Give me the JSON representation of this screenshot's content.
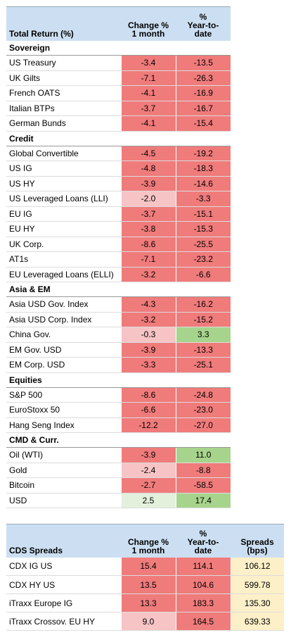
{
  "returns": {
    "header": {
      "title": "Total Return (%)",
      "col1": [
        "Change %",
        "1 month"
      ],
      "col2": [
        "%",
        "Year-to-",
        "date"
      ]
    },
    "sections": [
      {
        "name": "Sovereign",
        "rows": [
          {
            "label": "US Treasury",
            "m1": "-3.4",
            "ytd": "-13.5",
            "c1": "neg",
            "c2": "neg"
          },
          {
            "label": "UK Gilts",
            "m1": "-7.1",
            "ytd": "-26.3",
            "c1": "neg",
            "c2": "neg"
          },
          {
            "label": "French OATS",
            "m1": "-4.1",
            "ytd": "-16.9",
            "c1": "neg",
            "c2": "neg"
          },
          {
            "label": "Italian BTPs",
            "m1": "-3.7",
            "ytd": "-16.7",
            "c1": "neg",
            "c2": "neg"
          },
          {
            "label": "German Bunds",
            "m1": "-4.1",
            "ytd": "-15.4",
            "c1": "neg",
            "c2": "neg"
          }
        ]
      },
      {
        "name": "Credit",
        "rows": [
          {
            "label": "Global Convertible",
            "m1": "-4.5",
            "ytd": "-19.2",
            "c1": "neg",
            "c2": "neg"
          },
          {
            "label": "US IG",
            "m1": "-4.8",
            "ytd": "-18.3",
            "c1": "neg",
            "c2": "neg"
          },
          {
            "label": "US HY",
            "m1": "-3.9",
            "ytd": "-14.6",
            "c1": "neg",
            "c2": "neg"
          },
          {
            "label": "US Leveraged Loans (LLI)",
            "m1": "-2.0",
            "ytd": "-3.3",
            "c1": "negl",
            "c2": "neg"
          },
          {
            "label": "EU IG",
            "m1": "-3.7",
            "ytd": "-15.1",
            "c1": "neg",
            "c2": "neg"
          },
          {
            "label": "EU HY",
            "m1": "-3.8",
            "ytd": "-15.3",
            "c1": "neg",
            "c2": "neg"
          },
          {
            "label": "UK Corp.",
            "m1": "-8.6",
            "ytd": "-25.5",
            "c1": "neg",
            "c2": "neg"
          },
          {
            "label": "AT1s",
            "m1": "-7.1",
            "ytd": "-23.2",
            "c1": "neg",
            "c2": "neg"
          },
          {
            "label": "EU Leveraged Loans (ELLI)",
            "m1": "-3.2",
            "ytd": "-6.6",
            "c1": "neg",
            "c2": "neg"
          }
        ]
      },
      {
        "name": "Asia & EM",
        "rows": [
          {
            "label": "Asia USD Gov. Index",
            "m1": "-4.3",
            "ytd": "-16.2",
            "c1": "neg",
            "c2": "neg"
          },
          {
            "label": "Asia USD Corp. Index",
            "m1": "-3.2",
            "ytd": "-15.2",
            "c1": "neg",
            "c2": "neg"
          },
          {
            "label": "China Gov.",
            "m1": "-0.3",
            "ytd": "3.3",
            "c1": "negl",
            "c2": "pos"
          },
          {
            "label": "EM Gov. USD",
            "m1": "-3.9",
            "ytd": "-13.3",
            "c1": "neg",
            "c2": "neg"
          },
          {
            "label": "EM Corp. USD",
            "m1": "-3.3",
            "ytd": "-25.1",
            "c1": "neg",
            "c2": "neg"
          }
        ]
      },
      {
        "name": "Equities",
        "rows": [
          {
            "label": "S&P 500",
            "m1": "-8.6",
            "ytd": "-24.8",
            "c1": "neg",
            "c2": "neg"
          },
          {
            "label": "EuroStoxx 50",
            "m1": "-6.6",
            "ytd": "-23.0",
            "c1": "neg",
            "c2": "neg"
          },
          {
            "label": "Hang Seng Index",
            "m1": "-12.2",
            "ytd": "-27.0",
            "c1": "neg",
            "c2": "neg"
          }
        ]
      },
      {
        "name": "CMD & Curr.",
        "rows": [
          {
            "label": "Oil (WTI)",
            "m1": "-3.9",
            "ytd": "11.0",
            "c1": "neg",
            "c2": "pos"
          },
          {
            "label": "Gold",
            "m1": "-2.4",
            "ytd": "-8.8",
            "c1": "negl",
            "c2": "neg"
          },
          {
            "label": "Bitcoin",
            "m1": "-2.7",
            "ytd": "-58.5",
            "c1": "neg",
            "c2": "neg"
          },
          {
            "label": "USD",
            "m1": "2.5",
            "ytd": "17.4",
            "c1": "posl",
            "c2": "pos"
          }
        ]
      }
    ]
  },
  "cds": {
    "header": {
      "title": "CDS Spreads",
      "col1": [
        "Change %",
        "1 month"
      ],
      "col2": [
        "%",
        "Year-to-",
        "date"
      ],
      "col3": [
        "Spreads",
        "(bps)"
      ]
    },
    "rows": [
      {
        "label": "CDX IG US",
        "m1": "15.4",
        "ytd": "114.1",
        "spread": "106.12",
        "c1": "neg",
        "c2": "neg"
      },
      {
        "label": "CDX HY US",
        "m1": "13.5",
        "ytd": "104.6",
        "spread": "599.78",
        "c1": "neg",
        "c2": "neg"
      },
      {
        "label": "iTraxx Europe IG",
        "m1": "13.3",
        "ytd": "183.3",
        "spread": "135.30",
        "c1": "neg",
        "c2": "neg"
      },
      {
        "label": "iTraxx Crossov. EU HY",
        "m1": "9.0",
        "ytd": "164.5",
        "spread": "639.33",
        "c1": "negl",
        "c2": "neg"
      }
    ]
  },
  "colors": {
    "header": "#ccdff2",
    "negative": "#f07b7b",
    "negative_light": "#f7c4c6",
    "positive": "#a7d48c",
    "positive_light": "#e3f0dc",
    "spread": "#fdf0c8"
  }
}
